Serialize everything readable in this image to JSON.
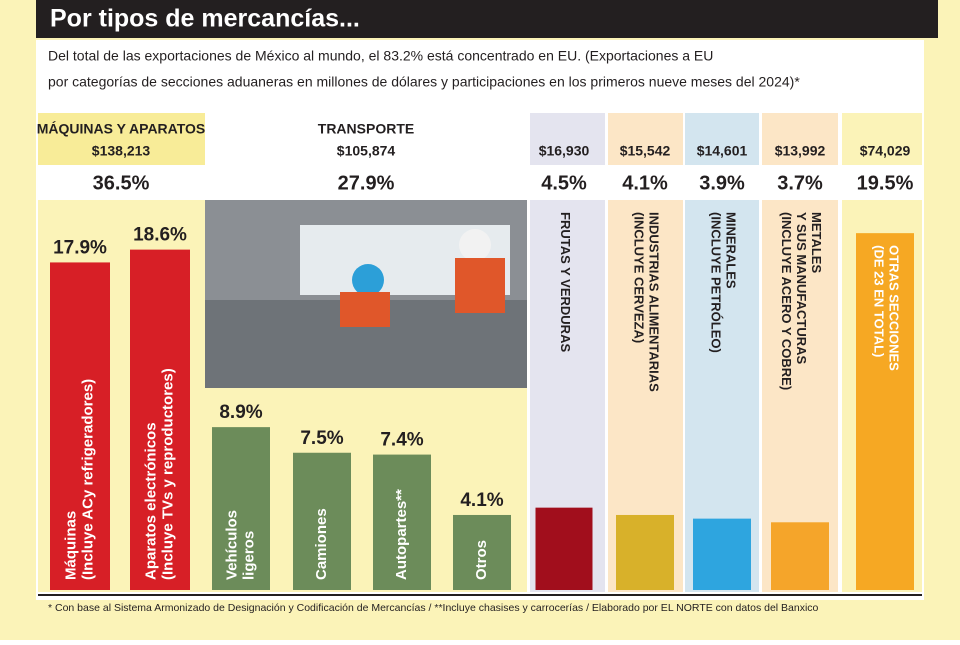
{
  "chart_data": {
    "type": "bar",
    "title": "Por tipos de mercancías...",
    "subtitle": [
      "Del total de las exportaciones de México al mundo, el 83.2% está concentrado en EU. (Exportaciones a EU",
      "por categorías de secciones aduaneras en millones de dólares y participaciones en los primeros nueve meses del 2024)*"
    ],
    "groups": [
      {
        "name": "MÁQUINAS Y APARATOS",
        "amount": "$138,213",
        "share": "36.5%"
      },
      {
        "name": "TRANSPORTE",
        "amount": "$105,874",
        "share": "27.9%"
      }
    ],
    "categories": [
      "Máquinas\n(Incluye ACy refrigeradores)",
      "Aparatos  electrónicos\n(Incluye TVs y reproductores)",
      "Vehículos\nligeros",
      "Camiones",
      "Autopartes**",
      "Otros",
      "FRUTAS Y VERDURAS",
      "INDUSTRIAS ALIMENTARIAS\n(INCLUYE CERVEZA)",
      "MINERALES\n(INCLUYE PETRÓLEO)",
      "METALES\nY SUS MANUFACTURAS\n(INCLUYE ACERO Y COBRE)",
      "OTRAS SECCIONES\n(DE 23 EN TOTAL)"
    ],
    "amounts": [
      null,
      null,
      null,
      null,
      null,
      null,
      "$16,930",
      "$15,542",
      "$14,601",
      "$13,992",
      "$74,029"
    ],
    "values": [
      17.9,
      18.6,
      8.9,
      7.5,
      7.4,
      4.1,
      4.5,
      4.1,
      3.9,
      3.7,
      19.5
    ],
    "value_labels": [
      "17.9%",
      "18.6%",
      "8.9%",
      "7.5%",
      "7.4%",
      "4.1%",
      "4.5%",
      "4.1%",
      "3.9%",
      "3.7%",
      "19.5%"
    ],
    "colors": [
      "#d71f26",
      "#d71f26",
      "#6c8c5a",
      "#6c8c5a",
      "#6c8c5a",
      "#6c8c5a",
      "#a10e1c",
      "#d8b12a",
      "#2ea5df",
      "#f5a52a",
      "#f6a823"
    ],
    "note": "* Con base al Sistema Armonizado de Designación y Codificación de Mercancías / **Incluye chasises y carrocerías / Elaborado por EL NORTE con datos del Banxico"
  }
}
